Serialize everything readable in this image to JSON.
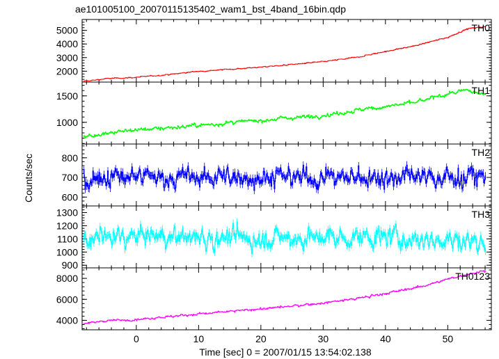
{
  "chart_data": {
    "type": "line",
    "title": "ae101005100_20070115135402_wam1_bst_4band_16bin.qdp",
    "xlabel": "Time [sec] 0 = 2007/01/15 13:54:02.138",
    "ylabel": "Counts/sec",
    "xlim": [
      -8.7,
      57.0
    ],
    "x_ticks": [
      0,
      10,
      20,
      30,
      40,
      50
    ],
    "x_tick_labels": [
      "0",
      "10",
      "20",
      "30",
      "40",
      "50"
    ],
    "panels": [
      {
        "name": "TH0",
        "color": "#ff0000",
        "ylim": [
          1200,
          5800
        ],
        "y_ticks": [
          2000,
          3000,
          4000,
          5000
        ],
        "y_tick_labels": [
          "2000",
          "3000",
          "4000",
          "5000"
        ],
        "noise": 45,
        "x": [
          -8.5,
          -5,
          0,
          5,
          10,
          15,
          20,
          25,
          30,
          35,
          40,
          45,
          50,
          53,
          56
        ],
        "y": [
          1250,
          1450,
          1550,
          1750,
          2000,
          2150,
          2300,
          2500,
          2700,
          3000,
          3450,
          3900,
          4500,
          5100,
          5300
        ]
      },
      {
        "name": "TH1",
        "color": "#00ff00",
        "ylim": [
          590,
          1760
        ],
        "y_ticks": [
          1000,
          1500
        ],
        "y_tick_labels": [
          "1000",
          "1500"
        ],
        "noise": 40,
        "x": [
          -8.5,
          -5,
          0,
          5,
          10,
          15,
          20,
          25,
          30,
          35,
          40,
          45,
          50,
          53,
          56
        ],
        "y": [
          720,
          800,
          860,
          900,
          940,
          990,
          1040,
          1090,
          1130,
          1220,
          1300,
          1380,
          1540,
          1600,
          1520
        ]
      },
      {
        "name": "TH2",
        "color": "#0000ff",
        "ylim": [
          555,
          870
        ],
        "y_ticks": [
          600,
          700,
          800
        ],
        "y_tick_labels": [
          "600",
          "700",
          "800"
        ],
        "noise": 55,
        "x": [
          -8.5,
          0,
          10,
          20,
          30,
          40,
          50,
          56
        ],
        "y": [
          700,
          700,
          700,
          700,
          700,
          700,
          700,
          700
        ]
      },
      {
        "name": "TH3",
        "color": "#00ffff",
        "ylim": [
          880,
          1350
        ],
        "y_ticks": [
          900,
          1000,
          1100,
          1200,
          1300
        ],
        "y_tick_labels": [
          "900",
          "1000",
          "1100",
          "1200",
          "1300"
        ],
        "noise": 80,
        "x": [
          -8.5,
          0,
          10,
          20,
          30,
          40,
          50,
          56
        ],
        "y": [
          1100,
          1120,
          1110,
          1100,
          1110,
          1110,
          1090,
          1080
        ]
      },
      {
        "name": "TH0123",
        "color": "#ff00ff",
        "ylim": [
          3100,
          9000
        ],
        "y_ticks": [
          4000,
          6000,
          8000
        ],
        "y_tick_labels": [
          "4000",
          "6000",
          "8000"
        ],
        "noise": 120,
        "x": [
          -8.5,
          -5,
          0,
          5,
          10,
          15,
          20,
          25,
          30,
          35,
          40,
          45,
          50,
          53,
          56
        ],
        "y": [
          3700,
          3950,
          4100,
          4350,
          4600,
          4850,
          5100,
          5350,
          5650,
          6050,
          6550,
          7150,
          7900,
          8400,
          8700
        ]
      }
    ]
  }
}
